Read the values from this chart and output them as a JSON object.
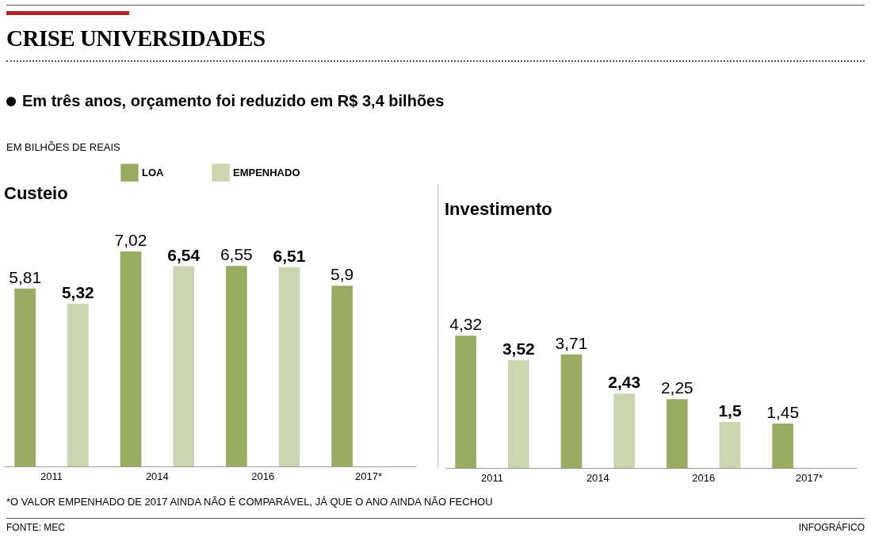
{
  "chart_data": [
    {
      "type": "bar",
      "title": "Custeio",
      "categories": [
        "2011",
        "2014",
        "2016",
        "2017*"
      ],
      "series": [
        {
          "name": "LOA",
          "color": "#9aab62",
          "values": [
            5.81,
            7.02,
            6.55,
            5.9
          ],
          "value_labels": [
            "5,81",
            "7,02",
            "6,55",
            "5,9"
          ]
        },
        {
          "name": "EMPENHADO",
          "color": "#cbd5b0",
          "values": [
            5.32,
            6.54,
            6.51,
            null
          ],
          "value_labels": [
            "5,32",
            "6,54",
            "6,51",
            null
          ]
        }
      ],
      "legend": "top",
      "annotations": [
        "CRISE UNIVERSIDADES",
        "Em três anos, orçamento foi reduzido em R$ 3,4 bilhões",
        "EM BILHÕES DE REAIS",
        "*O VALOR EMPENHADO DE 2017 AINDA NÃO É COMPARÁVEL, JÁ QUE O ANO AINDA NÃO FECHOU",
        "FONTE: MEC",
        "INFOGRÁFICO"
      ]
    },
    {
      "type": "bar",
      "title": "Investimento",
      "categories": [
        "2011",
        "2014",
        "2016",
        "2017*"
      ],
      "series": [
        {
          "color": "#9aab62",
          "values": [
            4.32,
            3.71,
            2.25,
            1.45
          ],
          "value_labels": [
            "4,32",
            "3,71",
            "2,25",
            "1,45"
          ]
        },
        {
          "color": "#cbd5b0",
          "values": [
            3.52,
            2.43,
            1.5,
            null
          ],
          "value_labels": [
            "3,52",
            "2,43",
            "1,5",
            null
          ]
        }
      ]
    }
  ]
}
